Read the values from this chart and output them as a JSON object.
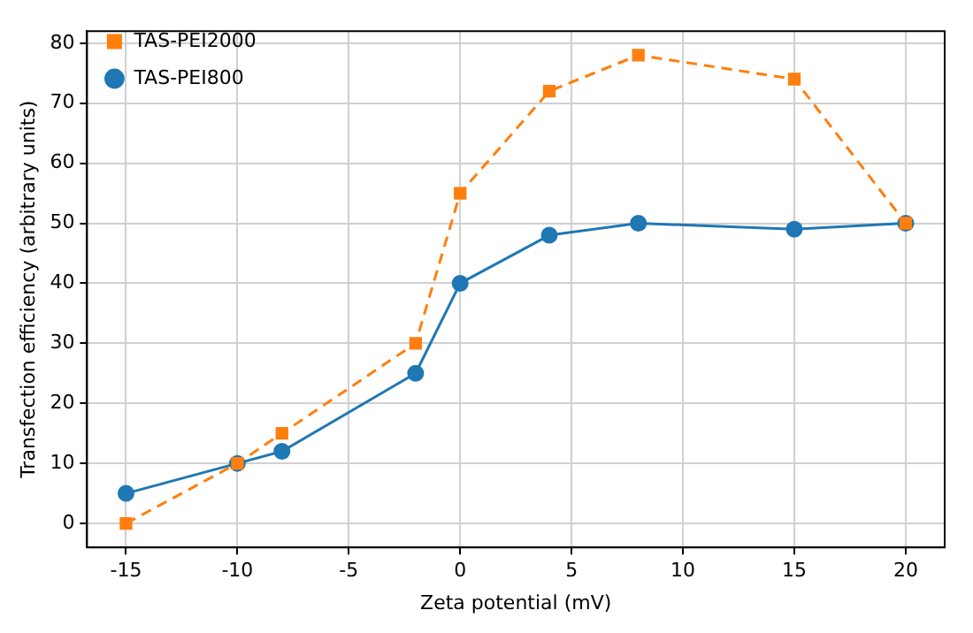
{
  "chart_data": {
    "type": "line",
    "xlabel": "Zeta potential (mV)",
    "ylabel": "Transfection efficiency (arbitrary units)",
    "xlim": [
      -16.75,
      21.75
    ],
    "ylim": [
      -4,
      82
    ],
    "xticks": [
      -15,
      -10,
      -5,
      0,
      5,
      10,
      15,
      20
    ],
    "yticks": [
      0,
      10,
      20,
      30,
      40,
      50,
      60,
      70,
      80
    ],
    "grid": true,
    "legend": "top left",
    "series": [
      {
        "name": "TAS-PEI800",
        "color": "#1f77b4",
        "marker": "circle",
        "line_style": "solid",
        "x": [
          -15,
          -10,
          -8,
          -2,
          0,
          4,
          8,
          15,
          20
        ],
        "values": [
          5,
          10,
          12,
          25,
          40,
          48,
          50,
          49,
          50
        ]
      },
      {
        "name": "TAS-PEI2000",
        "color": "#ff7f0e",
        "marker": "square",
        "line_style": "dashed",
        "x": [
          -15,
          -10,
          -8,
          -2,
          0,
          4,
          8,
          15,
          20
        ],
        "values": [
          0,
          10,
          15,
          30,
          55,
          72,
          78,
          74,
          50
        ]
      }
    ]
  }
}
